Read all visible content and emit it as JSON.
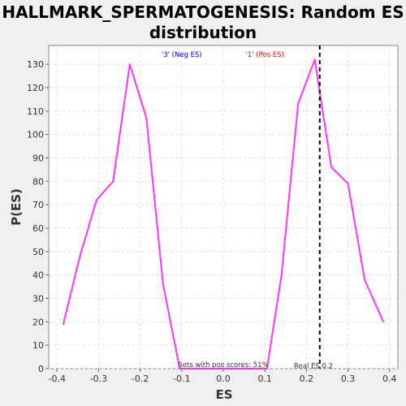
{
  "chart_data": {
    "type": "line",
    "title_line1": "HALLMARK_SPERMATOGENESIS: Random ES",
    "title_line2": "distribution",
    "xlabel": "ES",
    "ylabel": "P(ES)",
    "xlim": [
      -0.42,
      0.42
    ],
    "ylim": [
      0,
      138
    ],
    "x_ticks": [
      -0.4,
      -0.3,
      -0.2,
      -0.1,
      0.0,
      0.1,
      0.2,
      0.3,
      0.4
    ],
    "x_tick_labels": [
      "-0.4",
      "-0.3",
      "-0.2",
      "-0.1",
      "0.0",
      "0.1",
      "0.2",
      "0.3",
      "0.4"
    ],
    "y_ticks": [
      0,
      10,
      20,
      30,
      40,
      50,
      60,
      70,
      80,
      90,
      100,
      110,
      120,
      130
    ],
    "y_tick_labels": [
      "0",
      "10",
      "20",
      "30",
      "40",
      "50",
      "60",
      "70",
      "80",
      "90",
      "100",
      "110",
      "120",
      "130"
    ],
    "grid": true,
    "series": [
      {
        "color": "#ff33ff",
        "x": [
          -0.385,
          -0.345,
          -0.305,
          -0.265,
          -0.225,
          -0.185,
          -0.145,
          -0.105,
          -0.065,
          -0.025,
          0.015,
          0.055,
          0.105,
          0.14,
          0.18,
          0.22,
          0.26,
          0.3,
          0.34,
          0.385
        ],
        "y": [
          19,
          48,
          72,
          80,
          130,
          107,
          36,
          0,
          0,
          0,
          0,
          0,
          0,
          40,
          113,
          132,
          86,
          79,
          38,
          20
        ]
      }
    ],
    "annotations": {
      "neg_label": "'3' (Neg ES)",
      "neg_color": "#0000ff",
      "pos_label": "'1' (Pos ES)",
      "pos_color": "#ff0000",
      "pos_scores_text": "Sets with pos scores: 51%",
      "real_es_label": "Real ES 0.2",
      "real_es_value": 0.232
    }
  }
}
